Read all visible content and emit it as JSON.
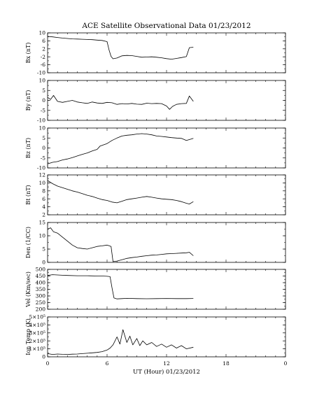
{
  "title": "ACE Satellite Observational Data    01/23/2012",
  "xlabel": "UT (Hour)   01/23/2012",
  "chart_data": {
    "type": "line",
    "title": "ACE Satellite Observational Data    01/23/2012",
    "xlabel": "UT (Hour)   01/23/2012",
    "x_ticks": [
      "0",
      "6",
      "12",
      "18",
      "0"
    ],
    "xlim": [
      0,
      24
    ],
    "grid": false,
    "panels": [
      {
        "ylabel": "Bx (nT)",
        "ylim": [
          -10,
          10
        ],
        "yticks": [
          "10",
          "6",
          "2",
          "-2",
          "-6",
          "-10"
        ],
        "yticks_values": [
          10,
          6,
          2,
          -2,
          -6,
          -10
        ],
        "x": [
          0,
          0.5,
          1,
          1.5,
          2,
          2.5,
          3,
          3.5,
          4,
          4.5,
          5,
          5.5,
          6,
          6.2,
          6.4,
          6.6,
          7,
          7.5,
          8,
          8.5,
          9,
          9.5,
          10,
          10.5,
          11,
          11.5,
          12,
          12.5,
          13,
          13.5,
          14,
          14.3,
          14.7
        ],
        "y": [
          8.2,
          8.0,
          7.7,
          7.4,
          7.2,
          7.0,
          6.9,
          6.8,
          6.7,
          6.6,
          6.4,
          6.2,
          5.6,
          1.5,
          -1.8,
          -3.0,
          -2.6,
          -1.5,
          -1.3,
          -1.4,
          -1.8,
          -2.2,
          -2.1,
          -2.0,
          -2.2,
          -2.5,
          -2.9,
          -3.2,
          -2.8,
          -2.4,
          -1.9,
          2.6,
          2.8
        ]
      },
      {
        "ylabel": "By (nT)",
        "ylim": [
          -10,
          10
        ],
        "yticks": [
          "10",
          "5",
          "0",
          "-5",
          "-10"
        ],
        "yticks_values": [
          10,
          5,
          0,
          -5,
          -10
        ],
        "x": [
          0,
          0.3,
          0.6,
          1,
          1.5,
          2,
          2.5,
          3,
          3.5,
          4,
          4.5,
          5,
          5.5,
          6,
          6.5,
          7,
          7.5,
          8,
          8.5,
          9,
          9.5,
          10,
          10.5,
          11,
          11.5,
          12,
          12.3,
          12.6,
          13,
          13.5,
          14,
          14.3,
          14.7
        ],
        "y": [
          1.5,
          0.5,
          2.5,
          -0.5,
          -1.0,
          -0.5,
          0.0,
          -0.8,
          -1.2,
          -1.5,
          -0.8,
          -1.3,
          -1.5,
          -1.0,
          -1.2,
          -2.0,
          -1.6,
          -1.8,
          -1.5,
          -1.9,
          -2.0,
          -1.4,
          -1.6,
          -1.5,
          -1.6,
          -2.8,
          -4.5,
          -3.0,
          -2.0,
          -1.6,
          -1.5,
          2.2,
          -0.5
        ]
      },
      {
        "ylabel": "Bz (nT)",
        "ylim": [
          -10,
          10
        ],
        "yticks": [
          "10",
          "5",
          "0",
          "-5",
          "-10"
        ],
        "yticks_values": [
          10,
          5,
          0,
          -5,
          -10
        ],
        "x": [
          0,
          0.5,
          1,
          1.5,
          2,
          2.5,
          3,
          3.5,
          4,
          4.5,
          5,
          5.3,
          5.6,
          6,
          6.5,
          7,
          7.5,
          8,
          8.5,
          9,
          9.5,
          10,
          10.5,
          11,
          11.5,
          12,
          12.5,
          13,
          13.5,
          14,
          14.3,
          14.7
        ],
        "y": [
          -8.0,
          -7.2,
          -6.8,
          -6.0,
          -5.5,
          -4.8,
          -4.0,
          -3.2,
          -2.5,
          -1.5,
          -0.7,
          1.0,
          1.5,
          2.2,
          3.8,
          5.0,
          6.0,
          6.4,
          6.6,
          7.0,
          7.2,
          7.0,
          6.6,
          6.0,
          5.8,
          5.5,
          5.2,
          5.0,
          4.8,
          3.8,
          4.2,
          4.8
        ]
      },
      {
        "ylabel": "Bt (nT)",
        "ylim": [
          2,
          12
        ],
        "yticks": [
          "12",
          "10",
          "8",
          "6",
          "4",
          "2"
        ],
        "yticks_values": [
          12,
          10,
          8,
          6,
          4,
          2
        ],
        "x": [
          0,
          0.5,
          1,
          1.5,
          2,
          2.5,
          3,
          3.5,
          4,
          4.5,
          5,
          5.5,
          6,
          6.5,
          7,
          7.5,
          8,
          8.5,
          9,
          9.5,
          10,
          10.5,
          11,
          11.5,
          12,
          12.5,
          13,
          13.5,
          14,
          14.3,
          14.7
        ],
        "y": [
          10.6,
          9.8,
          9.2,
          8.8,
          8.4,
          8.0,
          7.7,
          7.3,
          6.9,
          6.6,
          6.2,
          5.8,
          5.6,
          5.2,
          5.0,
          5.4,
          5.8,
          6.0,
          6.2,
          6.4,
          6.6,
          6.4,
          6.2,
          6.0,
          5.9,
          5.8,
          5.6,
          5.3,
          4.9,
          4.7,
          5.3
        ]
      },
      {
        "ylabel": "Den (1/CC)",
        "ylim": [
          0,
          15
        ],
        "yticks": [
          "15",
          "10",
          "5",
          "0"
        ],
        "yticks_values": [
          15,
          10,
          5,
          0
        ],
        "x": [
          0,
          0.3,
          0.6,
          1,
          1.5,
          2,
          2.5,
          3,
          3.5,
          4,
          4.5,
          5,
          5.5,
          6,
          6.4,
          6.6,
          7,
          7.5,
          8,
          8.5,
          9,
          9.5,
          10,
          10.5,
          11,
          11.5,
          12,
          12.5,
          13,
          13.5,
          14,
          14.3,
          14.7
        ],
        "y": [
          12.5,
          13.0,
          11.5,
          11.0,
          9.5,
          8.0,
          6.5,
          5.5,
          5.2,
          5.0,
          5.5,
          6.0,
          6.2,
          6.5,
          6.0,
          0.3,
          0.5,
          1.0,
          1.5,
          1.8,
          2.0,
          2.3,
          2.5,
          2.7,
          2.8,
          3.0,
          3.2,
          3.3,
          3.4,
          3.5,
          3.6,
          3.8,
          2.5
        ]
      },
      {
        "ylabel": "Vel (Km/sec)",
        "ylim": [
          200,
          500
        ],
        "yticks": [
          "500",
          "450",
          "400",
          "350",
          "300",
          "250",
          "200"
        ],
        "yticks_values": [
          500,
          450,
          400,
          350,
          300,
          250,
          200
        ],
        "x": [
          0,
          0.5,
          1,
          1.5,
          2,
          3,
          4,
          5,
          5.5,
          6,
          6.3,
          6.5,
          6.7,
          7,
          7.5,
          8,
          9,
          10,
          11,
          12,
          13,
          14,
          14.7
        ],
        "y": [
          455,
          460,
          458,
          456,
          454,
          452,
          452,
          450,
          450,
          448,
          445,
          360,
          285,
          278,
          280,
          282,
          280,
          279,
          280,
          281,
          280,
          280,
          281
        ]
      },
      {
        "ylabel": "Ion Temp (K)",
        "ylim": [
          0,
          500000
        ],
        "yticks": [
          "5×10⁵",
          "4×10⁵",
          "3×10⁵",
          "2×10⁵",
          "1×10⁵",
          "0"
        ],
        "yticks_values": [
          500000,
          400000,
          300000,
          200000,
          100000,
          0
        ],
        "x": [
          0,
          0.5,
          1,
          1.5,
          2,
          2.5,
          3,
          3.5,
          4,
          4.5,
          5,
          5.5,
          6,
          6.3,
          6.6,
          7,
          7.3,
          7.6,
          8,
          8.3,
          8.6,
          9,
          9.3,
          9.6,
          10,
          10.5,
          11,
          11.5,
          12,
          12.5,
          13,
          13.5,
          14,
          14.7
        ],
        "y": [
          40000,
          30000,
          35000,
          32000,
          30000,
          33000,
          35000,
          40000,
          45000,
          50000,
          55000,
          65000,
          85000,
          110000,
          150000,
          250000,
          160000,
          340000,
          180000,
          260000,
          150000,
          230000,
          140000,
          200000,
          150000,
          180000,
          130000,
          160000,
          120000,
          150000,
          110000,
          140000,
          100000,
          120000
        ]
      }
    ]
  }
}
